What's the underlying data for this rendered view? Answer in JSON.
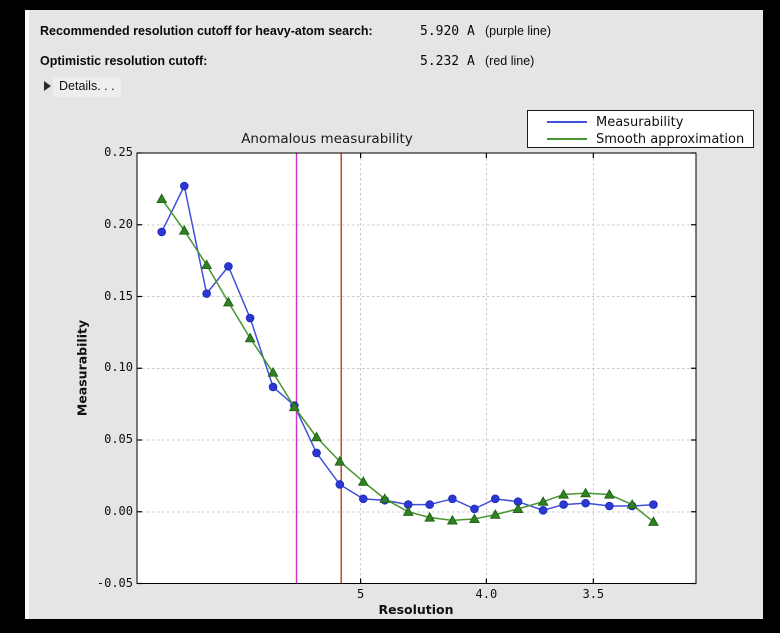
{
  "window": {
    "bg": "#000000",
    "panel_bg": "#e5e5e5"
  },
  "header": {
    "rows": [
      {
        "label": "Recommended resolution cutoff for heavy-atom search:",
        "value": "5.920 A",
        "note": "(purple line)"
      },
      {
        "label": "Optimistic resolution cutoff:",
        "value": "5.232 A",
        "note": "(red line)"
      }
    ],
    "details_label": "Details. . ."
  },
  "chart_data": {
    "type": "line",
    "title": "Anomalous measurability",
    "xlabel": "Resolution",
    "ylabel": "Measurability",
    "x_axis": {
      "scale": "reciprocal_resolution_squared",
      "s_min": 0.0,
      "s_max": 0.1,
      "ticks": [
        {
          "d": 5.0,
          "label": "5"
        },
        {
          "d": 4.0,
          "label": "4.0"
        },
        {
          "d": 3.5,
          "label": "3.5"
        }
      ]
    },
    "y_axis": {
      "min": -0.05,
      "max": 0.25,
      "ticks": [
        {
          "v": 0.25,
          "label": "0.25"
        },
        {
          "v": 0.2,
          "label": "0.20"
        },
        {
          "v": 0.15,
          "label": "0.15"
        },
        {
          "v": 0.1,
          "label": "0.10"
        },
        {
          "v": 0.05,
          "label": "0.05"
        },
        {
          "v": 0.0,
          "label": "0.00"
        },
        {
          "v": -0.05,
          "label": "-0.05"
        }
      ]
    },
    "grid": "dashed",
    "legend_position": "top-right-outside",
    "resolution_A": [
      15.04,
      10.87,
      8.96,
      7.82,
      7.03,
      6.41,
      5.96,
      5.58,
      5.25,
      4.97,
      4.75,
      4.54,
      4.37,
      4.21,
      4.07,
      3.95,
      3.83,
      3.71,
      3.62,
      3.53,
      3.44,
      3.36,
      3.29
    ],
    "series": [
      {
        "name": "Measurability",
        "marker": "circle",
        "line_color": "#4150d8",
        "marker_color": "#2b38d6",
        "marker_edge": "#1d2cb8",
        "values": [
          0.195,
          0.227,
          0.152,
          0.171,
          0.135,
          0.087,
          0.074,
          0.041,
          0.019,
          0.009,
          0.008,
          0.005,
          0.005,
          0.009,
          0.002,
          0.009,
          0.007,
          0.001,
          0.005,
          0.006,
          0.004,
          0.004,
          0.005
        ]
      },
      {
        "name": "Smooth approximation",
        "marker": "triangle-up",
        "line_color": "#47952f",
        "marker_color": "#2f8220",
        "marker_edge": "#24651a",
        "values": [
          0.218,
          0.196,
          0.172,
          0.146,
          0.121,
          0.097,
          0.073,
          0.052,
          0.035,
          0.021,
          0.009,
          0.0,
          -0.004,
          -0.006,
          -0.005,
          -0.002,
          0.002,
          0.007,
          0.012,
          0.013,
          0.012,
          0.005,
          -0.007
        ]
      }
    ],
    "vlines": [
      {
        "resolution": 5.92,
        "color": "#cc33cc",
        "name": "purple line"
      },
      {
        "resolution": 5.232,
        "color": "#c43a14",
        "name": "red line"
      }
    ]
  }
}
